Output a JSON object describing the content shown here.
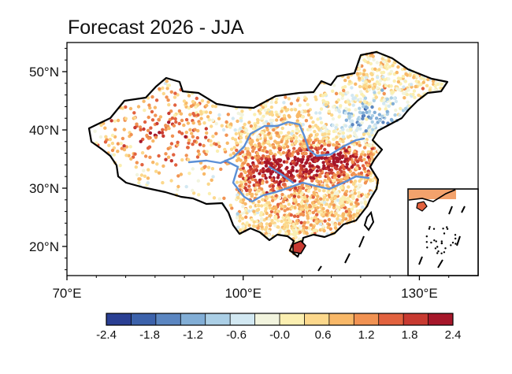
{
  "map": {
    "title": "Forecast 2026 - JJA",
    "lon_range": [
      70,
      140
    ],
    "lat_range": [
      15,
      55
    ],
    "x_ticks": [
      {
        "value": 70,
        "label": "70°E"
      },
      {
        "value": 100,
        "label": "100°E"
      },
      {
        "value": 130,
        "label": "130°E"
      }
    ],
    "y_ticks": [
      {
        "value": 20,
        "label": "20°N"
      },
      {
        "value": 30,
        "label": "30°N"
      },
      {
        "value": 40,
        "label": "40°N"
      },
      {
        "value": 50,
        "label": "50°N"
      }
    ],
    "colors": {
      "border": "#000000",
      "rivers": "#5b8fd6",
      "frame": "#000000"
    },
    "colorbar": {
      "min": -2.4,
      "max": 2.4,
      "tick_labels": [
        "-2.4",
        "-1.8",
        "-1.2",
        "-0.6",
        "-0.0",
        "0.6",
        "1.2",
        "1.8",
        "2.4"
      ],
      "colors": [
        "#2a3f93",
        "#3c62ab",
        "#5b86c1",
        "#82aed6",
        "#abcfe6",
        "#d2e8f2",
        "#f2f4de",
        "#fbefb1",
        "#fcd88c",
        "#f8b868",
        "#f19252",
        "#e2623f",
        "#c83a31",
        "#a6172a"
      ]
    },
    "regions": [
      {
        "name": "northeast",
        "level": 0.3
      },
      {
        "name": "north-china-plain",
        "level": 2.0
      },
      {
        "name": "yangtze-basin",
        "level": 1.9
      },
      {
        "name": "south-china",
        "level": 0.9
      },
      {
        "name": "west-xinjiang",
        "level": 1.6
      },
      {
        "name": "tibetan-plateau",
        "level": 0.2
      },
      {
        "name": "inner-mongolia-east",
        "level": -0.3
      }
    ]
  }
}
